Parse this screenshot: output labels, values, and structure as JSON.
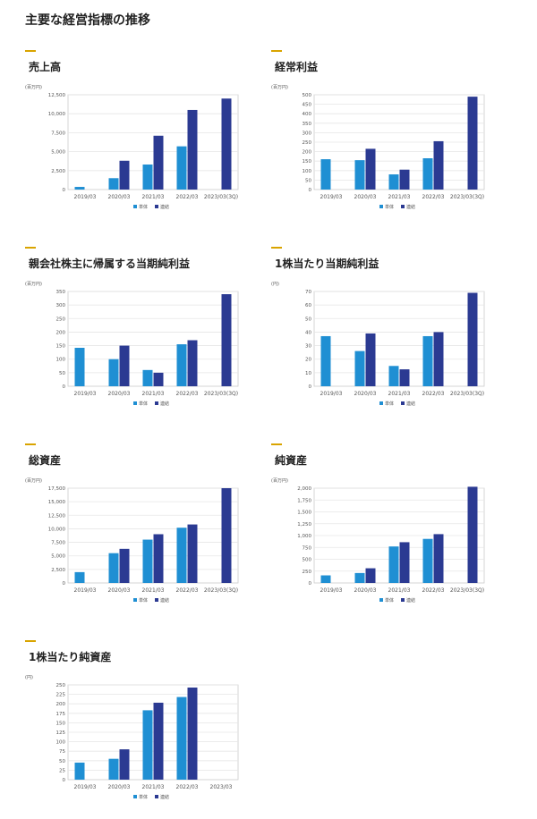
{
  "page": {
    "title": "主要な経営指標の推移"
  },
  "colors": {
    "tanntai": "#1f8fd3",
    "renketsu": "#2b3a92",
    "accent": "#d9a400",
    "grid": "#e6e6e6"
  },
  "legend": {
    "items": [
      {
        "label": "単体",
        "color": "#1f8fd3"
      },
      {
        "label": "連結",
        "color": "#2b3a92"
      }
    ]
  },
  "chart_data": [
    {
      "type": "bar",
      "title": "売上高",
      "unit": "(百万円)",
      "categories": [
        "2019/03",
        "2020/03",
        "2021/03",
        "2022/03",
        "2023/03(3Q)"
      ],
      "series": [
        {
          "name": "単体",
          "values": [
            350,
            1500,
            3300,
            5700,
            null
          ]
        },
        {
          "name": "連結",
          "values": [
            null,
            3800,
            7100,
            10500,
            12000
          ]
        }
      ],
      "ylim": [
        0,
        12500
      ],
      "yticks": [
        0,
        2500,
        5000,
        7500,
        10000,
        12500
      ],
      "ytick_labels": [
        "0",
        "2,500",
        "5,000",
        "7,500",
        "10,000",
        "12,500"
      ],
      "grid": true,
      "legend": "bottom"
    },
    {
      "type": "bar",
      "title": "経常利益",
      "unit": "(百万円)",
      "categories": [
        "2019/03",
        "2020/03",
        "2021/03",
        "2022/03",
        "2023/03(3Q)"
      ],
      "series": [
        {
          "name": "単体",
          "values": [
            160,
            155,
            80,
            165,
            null
          ]
        },
        {
          "name": "連結",
          "values": [
            null,
            215,
            105,
            255,
            490
          ]
        }
      ],
      "ylim": [
        0,
        500
      ],
      "yticks": [
        0,
        50,
        100,
        150,
        200,
        250,
        300,
        350,
        400,
        450,
        500
      ],
      "ytick_labels": [
        "0",
        "50",
        "100",
        "150",
        "200",
        "250",
        "300",
        "350",
        "400",
        "450",
        "500"
      ],
      "grid": true,
      "legend": "bottom"
    },
    {
      "type": "bar",
      "title": "親会社株主に帰属する当期純利益",
      "unit": "(百万円)",
      "categories": [
        "2019/03",
        "2020/03",
        "2021/03",
        "2022/03",
        "2023/03(3Q)"
      ],
      "series": [
        {
          "name": "単体",
          "values": [
            142,
            100,
            60,
            155,
            null
          ]
        },
        {
          "name": "連結",
          "values": [
            null,
            150,
            50,
            170,
            340
          ]
        }
      ],
      "ylim": [
        0,
        350
      ],
      "yticks": [
        0,
        50,
        100,
        150,
        200,
        250,
        300,
        350
      ],
      "ytick_labels": [
        "0",
        "50",
        "100",
        "150",
        "200",
        "250",
        "300",
        "350"
      ],
      "grid": true,
      "legend": "bottom"
    },
    {
      "type": "bar",
      "title": "1株当たり当期純利益",
      "unit": "(円)",
      "categories": [
        "2019/03",
        "2020/03",
        "2021/03",
        "2022/03",
        "2023/03(3Q)"
      ],
      "series": [
        {
          "name": "単体",
          "values": [
            37,
            26,
            15,
            37,
            null
          ]
        },
        {
          "name": "連結",
          "values": [
            null,
            39,
            12.5,
            40,
            69
          ]
        }
      ],
      "ylim": [
        0,
        70
      ],
      "yticks": [
        0,
        10,
        20,
        30,
        40,
        50,
        60,
        70
      ],
      "ytick_labels": [
        "0",
        "10",
        "20",
        "30",
        "40",
        "50",
        "60",
        "70"
      ],
      "grid": true,
      "legend": "bottom"
    },
    {
      "type": "bar",
      "title": "総資産",
      "unit": "(百万円)",
      "categories": [
        "2019/03",
        "2020/03",
        "2021/03",
        "2022/03",
        "2023/03(3Q)"
      ],
      "series": [
        {
          "name": "単体",
          "values": [
            2000,
            5500,
            8000,
            10200,
            null
          ]
        },
        {
          "name": "連結",
          "values": [
            null,
            6300,
            9000,
            10800,
            17500
          ]
        }
      ],
      "ylim": [
        0,
        17500
      ],
      "yticks": [
        0,
        2500,
        5000,
        7500,
        10000,
        12500,
        15000,
        17500
      ],
      "ytick_labels": [
        "0",
        "2,500",
        "5,000",
        "7,500",
        "10,000",
        "12,500",
        "15,000",
        "17,500"
      ],
      "grid": true,
      "legend": "bottom"
    },
    {
      "type": "bar",
      "title": "純資産",
      "unit": "(百万円)",
      "categories": [
        "2019/03",
        "2020/03",
        "2021/03",
        "2022/03",
        "2023/03(3Q)"
      ],
      "series": [
        {
          "name": "単体",
          "values": [
            160,
            210,
            770,
            930,
            null
          ]
        },
        {
          "name": "連結",
          "values": [
            null,
            310,
            860,
            1030,
            2030
          ]
        }
      ],
      "ylim": [
        0,
        2000
      ],
      "yticks": [
        0,
        250,
        500,
        750,
        1000,
        1250,
        1500,
        1750,
        2000
      ],
      "ytick_labels": [
        "0",
        "250",
        "500",
        "750",
        "1,000",
        "1,250",
        "1,500",
        "1,750",
        "2,000"
      ],
      "grid": true,
      "legend": "bottom"
    },
    {
      "type": "bar",
      "title": "1株当たり純資産",
      "unit": "(円)",
      "categories": [
        "2019/03",
        "2020/03",
        "2021/03",
        "2022/03",
        "2023/03"
      ],
      "series": [
        {
          "name": "単体",
          "values": [
            45,
            55,
            183,
            218,
            null
          ]
        },
        {
          "name": "連結",
          "values": [
            null,
            80,
            203,
            243,
            null
          ]
        }
      ],
      "ylim": [
        0,
        250
      ],
      "yticks": [
        0,
        25,
        50,
        75,
        100,
        125,
        150,
        175,
        200,
        225,
        250
      ],
      "ytick_labels": [
        "0",
        "25",
        "50",
        "75",
        "100",
        "125",
        "150",
        "175",
        "200",
        "225",
        "250"
      ],
      "grid": true,
      "legend": "bottom"
    }
  ]
}
